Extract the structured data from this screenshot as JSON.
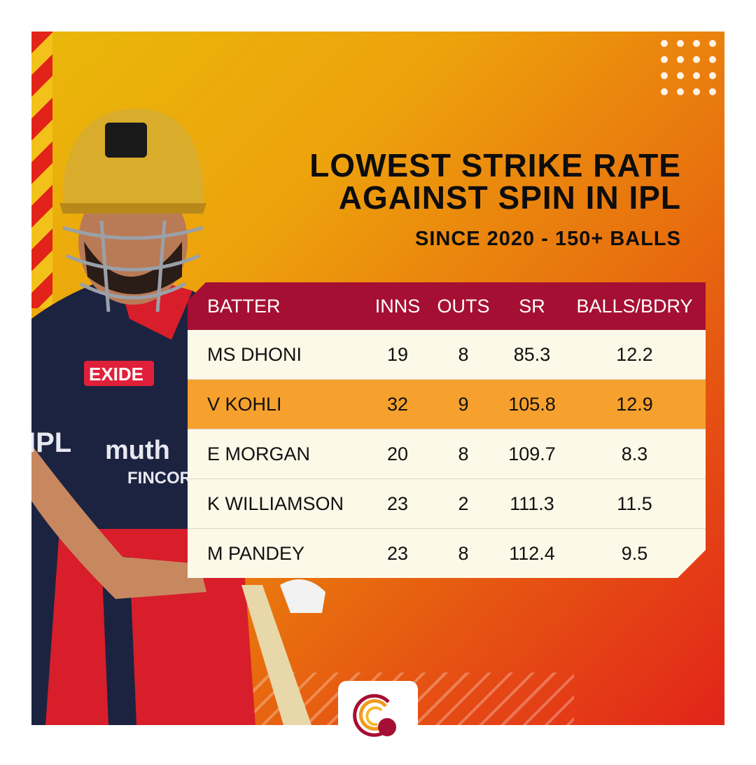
{
  "title_lines": [
    "LOWEST STRIKE RATE",
    "AGAINST SPIN IN IPL"
  ],
  "subtitle": "SINCE 2020 - 150+ BALLS",
  "colors": {
    "header": "#a50f33",
    "row": "#fdf9e8",
    "highlight": "#f6a12d",
    "gradient_start": "#e9b80a",
    "gradient_end": "#e2231a"
  },
  "chart_data": {
    "type": "table",
    "columns": [
      "BATTER",
      "INNS",
      "OUTS",
      "SR",
      "BALLS/BDRY"
    ],
    "rows": [
      [
        "MS DHONI",
        "19",
        "8",
        "85.3",
        "12.2"
      ],
      [
        "V KOHLI",
        "32",
        "9",
        "105.8",
        "12.9"
      ],
      [
        "E MORGAN",
        "20",
        "8",
        "109.7",
        "8.3"
      ],
      [
        "K WILLIAMSON",
        "23",
        "2",
        "111.3",
        "11.5"
      ],
      [
        "M PANDEY",
        "23",
        "8",
        "112.4",
        "9.5"
      ]
    ],
    "highlighted_row": 1
  },
  "player_jersey_text": [
    "EXIDE",
    "muthoot",
    "FINCORP",
    "IPL"
  ],
  "logo_icon": "cricket-ball-logo"
}
